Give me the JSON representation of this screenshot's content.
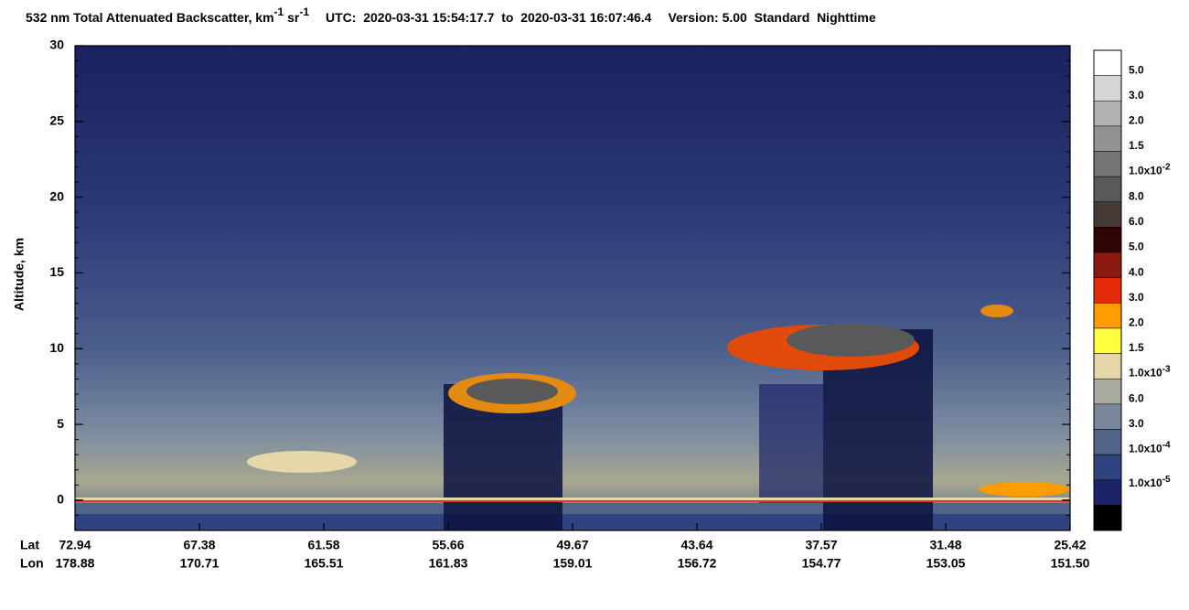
{
  "chart_data": {
    "type": "curtain",
    "title": {
      "text": "532 nm Total Attenuated Backscatter, km",
      "sup1": "-1",
      "mid": " sr",
      "sup2": "-1"
    },
    "utc": "UTC:  2020-03-31 15:54:17.7  to  2020-03-31 16:07:46.4",
    "version": "Version: 5.00  Standard  Nighttime",
    "ylabel": "Altitude, km",
    "ylim": [
      -2,
      30
    ],
    "yticks": [
      0,
      5,
      10,
      15,
      20,
      25,
      30
    ],
    "row_labels": [
      "Lat",
      "Lon"
    ],
    "lat": [
      "72.94",
      "67.38",
      "61.58",
      "55.66",
      "49.67",
      "43.64",
      "37.57",
      "31.48",
      "25.42"
    ],
    "lon": [
      "178.88",
      "170.71",
      "165.51",
      "161.83",
      "159.01",
      "156.72",
      "154.77",
      "153.05",
      "151.50"
    ],
    "colorbar": {
      "colors": [
        "#ffffff",
        "#d6d6d6",
        "#b2b2b2",
        "#939393",
        "#747474",
        "#595959",
        "#463a36",
        "#300404",
        "#8c1a12",
        "#e52a0a",
        "#ff9c00",
        "#ffff40",
        "#e6d7a8",
        "#a9aba0",
        "#7a879a",
        "#516488",
        "#2e4380",
        "#1d2368",
        "#000000"
      ],
      "labels": [
        "5.0",
        "3.0",
        "2.0",
        "1.5",
        {
          "text": "1.0x10",
          "sup": "-2"
        },
        "8.0",
        "6.0",
        "5.0",
        "4.0",
        "3.0",
        "2.0",
        "1.5",
        {
          "text": "1.0x10",
          "sup": "-3"
        },
        "6.0",
        "3.0",
        {
          "text": "1.0x10",
          "sup": "-4"
        },
        {
          "text": "1.0x10",
          "sup": "-5"
        }
      ]
    }
  }
}
